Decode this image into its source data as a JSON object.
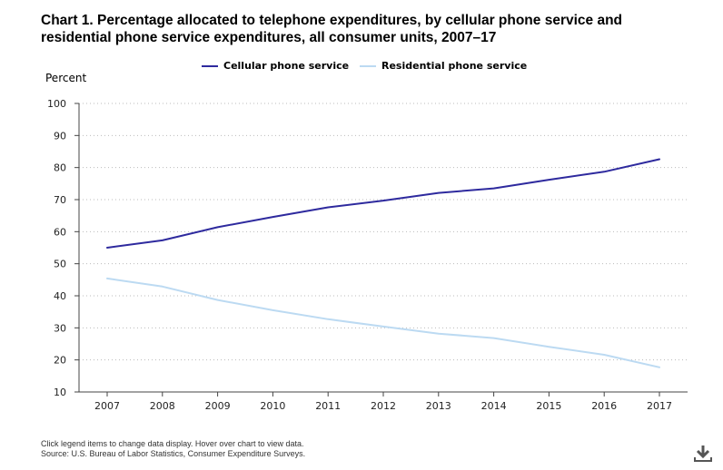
{
  "chart_data": {
    "type": "line",
    "title": "Chart 1. Percentage allocated to telephone expenditures, by cellular phone service and residential phone service expenditures, all consumer units, 2007–17",
    "ylabel": "Percent",
    "xlabel": "",
    "x": [
      "2007",
      "2008",
      "2009",
      "2010",
      "2011",
      "2012",
      "2013",
      "2014",
      "2015",
      "2016",
      "2017"
    ],
    "ylim": [
      10,
      100
    ],
    "yticks": [
      "10",
      "20",
      "30",
      "40",
      "50",
      "60",
      "70",
      "80",
      "90",
      "100"
    ],
    "grid": "horizontal dotted",
    "legend_position": "top",
    "series": [
      {
        "name": "Cellular phone service",
        "color": "#2e2a9e",
        "values": [
          55,
          57.3,
          61.4,
          64.6,
          67.6,
          69.7,
          72.1,
          73.5,
          76.2,
          78.7,
          82.6
        ]
      },
      {
        "name": "Residential phone service",
        "color": "#bcdaf2",
        "values": [
          45.4,
          42.9,
          38.7,
          35.5,
          32.7,
          30.4,
          28.2,
          26.8,
          24.1,
          21.6,
          17.7
        ]
      }
    ]
  },
  "footer": {
    "note": "Click legend items to change data display. Hover over chart to view data.",
    "source": "Source: U.S. Bureau of Labor Statistics, Consumer Expenditure Surveys."
  },
  "icons": {
    "download": "download-icon"
  }
}
